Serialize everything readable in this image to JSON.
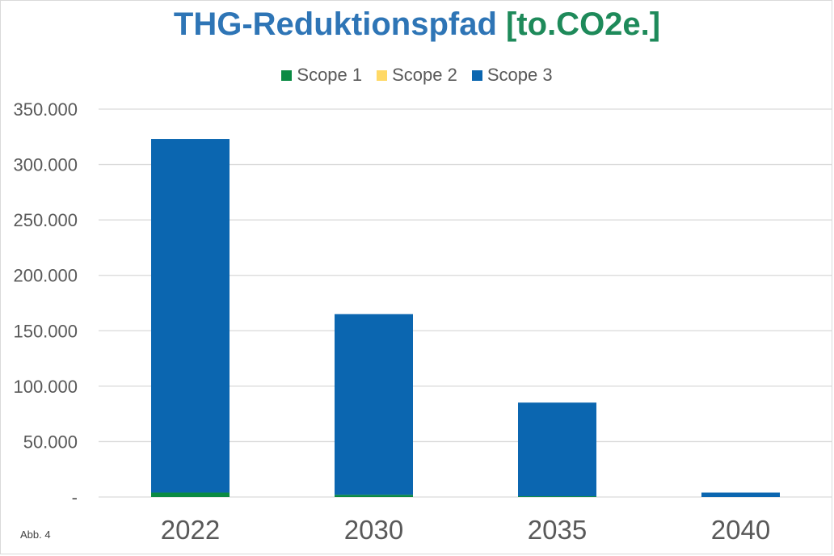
{
  "chart_data": {
    "type": "bar",
    "stacked": true,
    "title_parts": [
      {
        "text": "THG-Reduktionspfad",
        "color": "#2E75B6"
      },
      {
        "text": " [to.CO2e.]",
        "color": "#1E8A5A"
      }
    ],
    "categories": [
      "2022",
      "2030",
      "2035",
      "2040"
    ],
    "series": [
      {
        "name": "Scope 1",
        "color": "#0A8A43",
        "values": [
          4000,
          2000,
          700,
          0
        ]
      },
      {
        "name": "Scope 2",
        "color": "#FFD966",
        "values": [
          0,
          0,
          0,
          0
        ]
      },
      {
        "name": "Scope 3",
        "color": "#0B66B0",
        "values": [
          319000,
          163000,
          84500,
          4000
        ]
      }
    ],
    "ylim": [
      0,
      350000
    ],
    "yticks": [
      {
        "value": 0,
        "label": "-"
      },
      {
        "value": 50000,
        "label": "50.000"
      },
      {
        "value": 100000,
        "label": "100.000"
      },
      {
        "value": 150000,
        "label": "150.000"
      },
      {
        "value": 200000,
        "label": "200.000"
      },
      {
        "value": 250000,
        "label": "250.000"
      },
      {
        "value": 300000,
        "label": "300.000"
      },
      {
        "value": 350000,
        "label": "350.000"
      }
    ],
    "grid": true,
    "legend_position": "top"
  },
  "footnote": "Abb. 4"
}
